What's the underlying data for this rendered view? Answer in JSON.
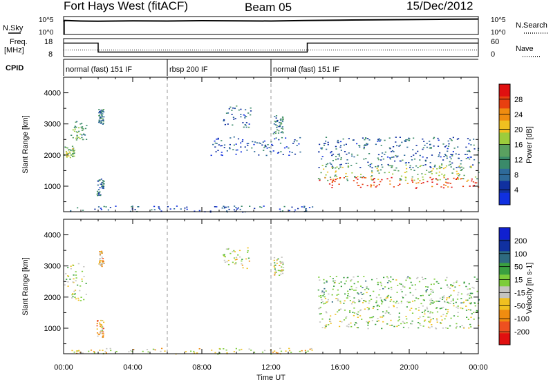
{
  "header": {
    "radar": "Fort Hays West (fitACF)",
    "beam": "Beam 05",
    "date": "15/Dec/2012"
  },
  "nsky_panel": {
    "left_label": "N.Sky",
    "right_label": "N.Search",
    "left_ticks": [
      "10^5",
      "10^0"
    ],
    "right_ticks": [
      "10^5",
      "10^0"
    ],
    "series": [
      {
        "x": 0.0,
        "y": 0.72
      },
      {
        "x": 0.05,
        "y": 0.78
      },
      {
        "x": 1.0,
        "y": 0.75
      },
      {
        "x": 2.0,
        "y": 0.74
      },
      {
        "x": 4.0,
        "y": 0.76
      },
      {
        "x": 6.0,
        "y": 0.75
      },
      {
        "x": 8.0,
        "y": 0.77
      },
      {
        "x": 10.0,
        "y": 0.76
      },
      {
        "x": 12.0,
        "y": 0.75
      },
      {
        "x": 14.0,
        "y": 0.78
      },
      {
        "x": 16.0,
        "y": 0.8
      },
      {
        "x": 18.0,
        "y": 0.82
      },
      {
        "x": 20.0,
        "y": 0.83
      },
      {
        "x": 22.0,
        "y": 0.85
      },
      {
        "x": 24.0,
        "y": 0.86
      }
    ]
  },
  "freq_panel": {
    "left_label_1": "Freq.",
    "left_label_2": "[MHz]",
    "right_label": "Nave",
    "left_ticks": [
      "18",
      "8"
    ],
    "right_ticks": [
      "60",
      "0"
    ],
    "freq_segments": [
      {
        "x0": 0.0,
        "x1": 2.0,
        "mhz": 15.5
      },
      {
        "x0": 2.0,
        "x1": 14.1,
        "mhz": 10.5
      },
      {
        "x0": 14.1,
        "x1": 24.0,
        "mhz": 15.5
      }
    ],
    "nave_level": 22
  },
  "cpid": {
    "label": "CPID",
    "modes": [
      {
        "x0": 0.0,
        "x1": 6.0,
        "name": "normal (fast) 151 IF"
      },
      {
        "x0": 6.0,
        "x1": 12.0,
        "name": "rbsp 200 IF"
      },
      {
        "x0": 12.0,
        "x1": 24.0,
        "name": "normal (fast) 151 IF"
      }
    ]
  },
  "xaxis": {
    "title": "Time UT",
    "ticks": [
      "00:00",
      "04:00",
      "08:00",
      "12:00",
      "16:00",
      "20:00",
      "00:00"
    ]
  },
  "colors": {
    "power": [
      "#1030e0",
      "#1030a0",
      "#2e6a9a",
      "#3a8a6a",
      "#5aa060",
      "#9ccc3c",
      "#f0c020",
      "#f08c10",
      "#e84010",
      "#e01010"
    ],
    "velocity": [
      "#e01010",
      "#ee5020",
      "#f08c10",
      "#f0c020",
      "#c4c4c0",
      "#7ccc3a",
      "#3aa040",
      "#2e6a80",
      "#1030a0",
      "#1020d0"
    ]
  },
  "chart_data": [
    {
      "type": "heatmap",
      "title": "Power",
      "ylabel": "Slant Range [km]",
      "xlabel": "",
      "xlim": [
        0,
        24
      ],
      "ylim": [
        180,
        4500
      ],
      "yticks": [
        1000,
        2000,
        3000,
        4000
      ],
      "colorbar_label": "Power [dB]",
      "colorbar_ticks": [
        "4",
        "8",
        "12",
        "16",
        "20",
        "24",
        "28"
      ],
      "regions": [
        {
          "x0": 0.0,
          "x1": 0.6,
          "y0": 1900,
          "y1": 2300,
          "value": 16
        },
        {
          "x0": 0.4,
          "x1": 1.3,
          "y0": 2500,
          "y1": 3100,
          "value": 12
        },
        {
          "x0": 1.9,
          "x1": 2.3,
          "y0": 700,
          "y1": 1300,
          "value": 8
        },
        {
          "x0": 2.0,
          "x1": 2.3,
          "y0": 3000,
          "y1": 3500,
          "value": 10
        },
        {
          "x0": 9.2,
          "x1": 10.8,
          "y0": 2900,
          "y1": 3600,
          "value": 8
        },
        {
          "x0": 12.1,
          "x1": 12.7,
          "y0": 2700,
          "y1": 3300,
          "value": 10
        },
        {
          "x0": 8.5,
          "x1": 13.8,
          "y0": 2000,
          "y1": 2600,
          "value": 6
        },
        {
          "x0": 14.7,
          "x1": 24.0,
          "y0": 1600,
          "y1": 2600,
          "value": 8
        },
        {
          "x0": 14.7,
          "x1": 24.0,
          "y0": 1200,
          "y1": 1700,
          "value": 16
        },
        {
          "x0": 14.7,
          "x1": 24.0,
          "y0": 950,
          "y1": 1300,
          "value": 28
        },
        {
          "x0": 0.3,
          "x1": 14.5,
          "y0": 180,
          "y1": 380,
          "value": 6
        }
      ]
    },
    {
      "type": "heatmap",
      "title": "Velocity",
      "ylabel": "Slant Range [km]",
      "xlabel": "Time UT",
      "xlim": [
        0,
        24
      ],
      "ylim": [
        180,
        4500
      ],
      "yticks": [
        1000,
        2000,
        3000,
        4000
      ],
      "colorbar_label": "Velocity [m s-1]",
      "colorbar_ticks": [
        "-200",
        "-100",
        "-50",
        "-15",
        "15",
        "50",
        "100",
        "200"
      ],
      "regions": [
        {
          "x0": 0.0,
          "x1": 1.3,
          "y0": 1900,
          "y1": 3100,
          "value": 0
        },
        {
          "x0": 1.9,
          "x1": 2.3,
          "y0": 700,
          "y1": 1300,
          "value": -80
        },
        {
          "x0": 2.0,
          "x1": 2.3,
          "y0": 3000,
          "y1": 3500,
          "value": -80
        },
        {
          "x0": 9.2,
          "x1": 10.8,
          "y0": 2900,
          "y1": 3600,
          "value": -30
        },
        {
          "x0": 12.1,
          "x1": 12.7,
          "y0": 2700,
          "y1": 3300,
          "value": -30
        },
        {
          "x0": 14.7,
          "x1": 24.0,
          "y0": 1000,
          "y1": 2000,
          "value": 0
        },
        {
          "x0": 14.7,
          "x1": 24.0,
          "y0": 1800,
          "y1": 2700,
          "value": 30
        },
        {
          "x0": 0.3,
          "x1": 14.5,
          "y0": 180,
          "y1": 380,
          "value": -40
        }
      ]
    }
  ]
}
